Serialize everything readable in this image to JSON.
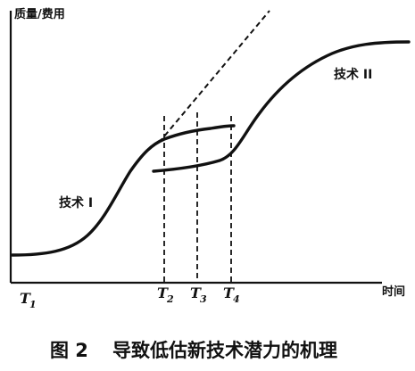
{
  "axes": {
    "y_label": "质量/费用",
    "x_label": "时间"
  },
  "curves": {
    "tech1_label": "技术 I",
    "tech2_label": "技术 II"
  },
  "ticks": [
    {
      "letter": "T",
      "sub": "1"
    },
    {
      "letter": "T",
      "sub": "2"
    },
    {
      "letter": "T",
      "sub": "3"
    },
    {
      "letter": "T",
      "sub": "4"
    }
  ],
  "caption": {
    "number": "图 2",
    "text": "导致低估新技术潜力的机理"
  }
}
